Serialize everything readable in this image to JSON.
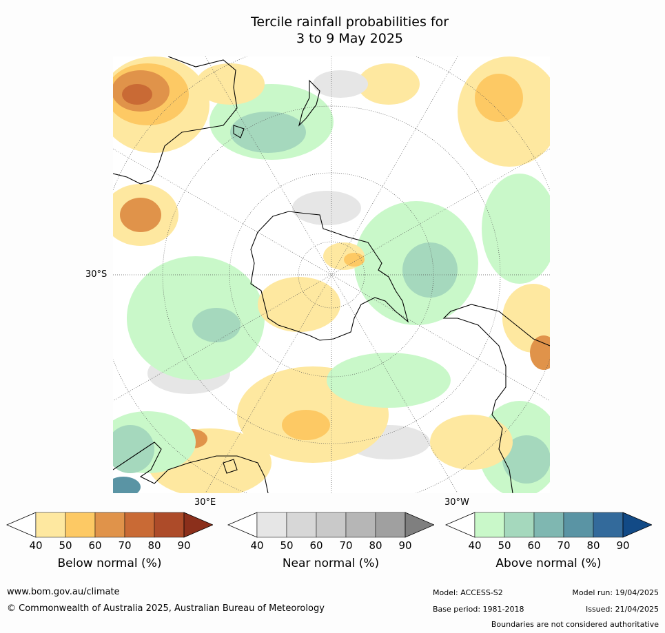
{
  "title": {
    "line1": "Tercile rainfall probabilities for",
    "line2": "3 to 9 May 2025"
  },
  "map": {
    "labels": {
      "lat_30s": "30°S",
      "lon_30e": "30°E",
      "lon_30w": "30°W"
    },
    "colors": {
      "land_outline": "#000000",
      "ocean_background": "#ffffff",
      "graticule": "#555555"
    }
  },
  "legends": [
    {
      "label": "Below normal (%)",
      "ticks": [
        "40",
        "50",
        "60",
        "70",
        "80",
        "90"
      ],
      "colors": [
        "#ffffff",
        "#fee8a0",
        "#fdc964",
        "#e0934a",
        "#c96a35",
        "#ad4b29",
        "#8b2f1b"
      ]
    },
    {
      "label": "Near normal (%)",
      "ticks": [
        "40",
        "50",
        "60",
        "70",
        "80",
        "90"
      ],
      "colors": [
        "#ffffff",
        "#e6e6e6",
        "#d7d7d7",
        "#c9c9c9",
        "#b6b6b6",
        "#a0a0a0",
        "#7f7f7f"
      ]
    },
    {
      "label": "Above normal (%)",
      "ticks": [
        "40",
        "50",
        "60",
        "70",
        "80",
        "90"
      ],
      "colors": [
        "#ffffff",
        "#c9f8c9",
        "#a5d8bd",
        "#7fb7b1",
        "#5a94a4",
        "#336a9b",
        "#124a86"
      ]
    }
  ],
  "footer": {
    "website": "www.bom.gov.au/climate",
    "copyright": "© Commonwealth of Australia 2025, Australian Bureau of Meteorology",
    "model": "Model: ACCESS-S2",
    "model_run": "Model run: 19/04/2025",
    "base_period": "Base period: 1981-2018",
    "issued": "Issued: 21/04/2025",
    "disclaimer": "Boundaries are not considered authoritative"
  }
}
